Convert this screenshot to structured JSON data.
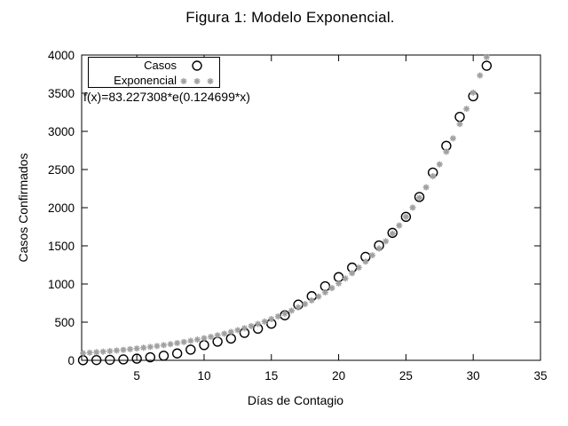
{
  "chart_data": {
    "type": "scatter",
    "title": "Figura 1: Modelo Exponencial.",
    "xlabel": "Días de Contagio",
    "ylabel": "Casos Confirmados",
    "annotation": "f(x)=83.227308*e(0.124699*x)",
    "xlim": [
      0.9,
      35
    ],
    "ylim": [
      0,
      4000
    ],
    "x_ticks": [
      5,
      10,
      15,
      20,
      25,
      30,
      35
    ],
    "y_ticks": [
      0,
      500,
      1000,
      1500,
      2000,
      2500,
      3000,
      3500,
      4000
    ],
    "grid": false,
    "legend_position": "top-left",
    "axis_color": "#000000",
    "series": [
      {
        "name": "Casos",
        "marker": "circle",
        "color": "#000000",
        "x": [
          1,
          2,
          3,
          4,
          5,
          6,
          7,
          8,
          9,
          10,
          11,
          12,
          13,
          14,
          15,
          16,
          17,
          18,
          19,
          20,
          21,
          22,
          23,
          24,
          25,
          26,
          27,
          28,
          29,
          30,
          31
        ],
        "y": [
          2,
          4,
          7,
          12,
          22,
          40,
          60,
          90,
          140,
          200,
          245,
          285,
          360,
          415,
          480,
          590,
          730,
          840,
          970,
          1090,
          1215,
          1355,
          1505,
          1670,
          1880,
          2140,
          2460,
          2810,
          3190,
          3460,
          3860
        ]
      },
      {
        "name": "Exponencial",
        "marker": "asterisk",
        "color": "#a0a0a0",
        "formula": "f(x)=83.227308*e(0.124699*x)",
        "a": 83.227308,
        "b": 0.124699,
        "x_start": 1,
        "x_step": 0.5,
        "x_end": 35,
        "clip_ymax": 4000
      }
    ]
  }
}
